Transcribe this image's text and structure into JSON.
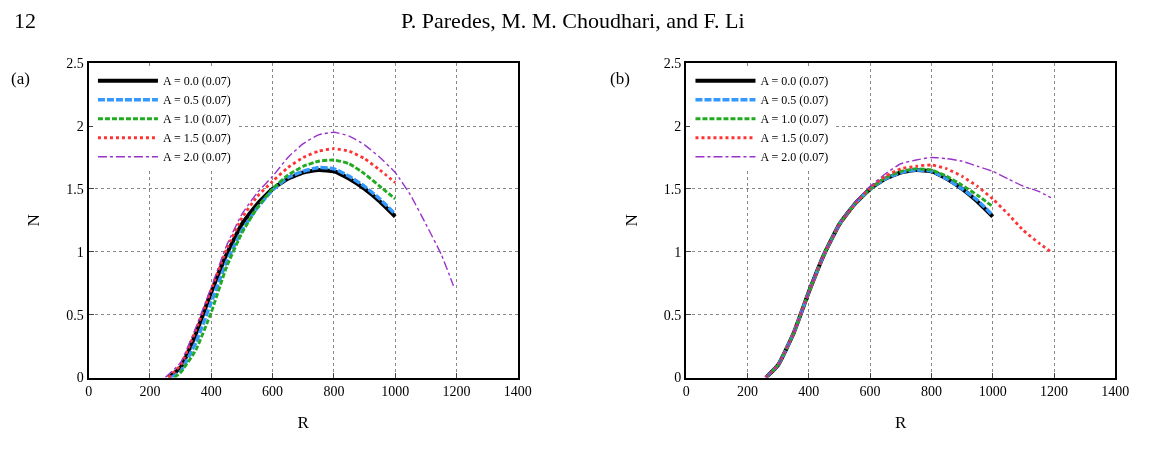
{
  "chart_data": [
    {
      "type": "line",
      "xlabel": "R",
      "ylabel": "N",
      "xlim": [
        0,
        1400
      ],
      "xticks": [
        0,
        200,
        400,
        600,
        800,
        1000,
        1200,
        1400
      ],
      "ylim": [
        0,
        2.5
      ],
      "yticks": [
        0,
        0.5,
        1,
        1.5,
        2,
        2.5
      ],
      "grid": true,
      "legend": "top left",
      "annotations": [
        "12",
        "P. Paredes, M. M. Choudhari, and F. Li",
        "(a)"
      ],
      "series": [
        {
          "name": "A = 0.0 (0.07)",
          "color": "#000000",
          "line_style": "solid",
          "x": [
            260,
            300,
            350,
            400,
            450,
            500,
            550,
            600,
            650,
            700,
            750,
            800,
            850,
            900,
            950,
            1000
          ],
          "values": [
            0,
            0.08,
            0.35,
            0.68,
            0.98,
            1.22,
            1.38,
            1.5,
            1.58,
            1.63,
            1.65,
            1.64,
            1.58,
            1.5,
            1.4,
            1.28
          ]
        },
        {
          "name": "A = 0.5 (0.07)",
          "color": "#3399ff",
          "line_style": "longdash",
          "x": [
            270,
            300,
            350,
            400,
            450,
            500,
            550,
            600,
            650,
            700,
            750,
            800,
            850,
            900,
            950,
            1000
          ],
          "values": [
            0,
            0.05,
            0.28,
            0.6,
            0.92,
            1.17,
            1.35,
            1.49,
            1.59,
            1.64,
            1.67,
            1.66,
            1.6,
            1.52,
            1.42,
            1.3
          ]
        },
        {
          "name": "A = 1.0 (0.07)",
          "color": "#22aa22",
          "line_style": "dashed",
          "x": [
            280,
            300,
            350,
            400,
            450,
            500,
            550,
            600,
            650,
            700,
            750,
            800,
            850,
            900,
            950,
            1000
          ],
          "values": [
            0,
            0.04,
            0.22,
            0.52,
            0.88,
            1.15,
            1.35,
            1.5,
            1.61,
            1.68,
            1.72,
            1.73,
            1.7,
            1.62,
            1.52,
            1.42
          ]
        },
        {
          "name": "A = 1.5 (0.07)",
          "color": "#ff3333",
          "line_style": "dotted",
          "x": [
            260,
            300,
            350,
            400,
            450,
            500,
            550,
            600,
            650,
            700,
            750,
            800,
            850,
            900,
            950,
            1000
          ],
          "values": [
            0,
            0.1,
            0.38,
            0.7,
            1.02,
            1.27,
            1.44,
            1.56,
            1.67,
            1.75,
            1.8,
            1.82,
            1.8,
            1.74,
            1.65,
            1.55
          ]
        },
        {
          "name": "A = 2.0 (0.07)",
          "color": "#9933cc",
          "line_style": "dashdot",
          "x": [
            250,
            300,
            350,
            400,
            450,
            500,
            550,
            600,
            650,
            700,
            750,
            800,
            850,
            900,
            950,
            1000,
            1050,
            1100,
            1150,
            1190
          ],
          "values": [
            0,
            0.12,
            0.4,
            0.72,
            1.05,
            1.3,
            1.47,
            1.6,
            1.75,
            1.86,
            1.93,
            1.95,
            1.92,
            1.85,
            1.75,
            1.63,
            1.45,
            1.22,
            0.98,
            0.73
          ]
        }
      ]
    },
    {
      "type": "line",
      "xlabel": "R",
      "ylabel": "N",
      "xlim": [
        0,
        1400
      ],
      "xticks": [
        0,
        200,
        400,
        600,
        800,
        1000,
        1200,
        1400
      ],
      "ylim": [
        0,
        2.5
      ],
      "yticks": [
        0,
        0.5,
        1,
        1.5,
        2,
        2.5
      ],
      "grid": true,
      "legend": "top left",
      "annotations": [
        "(b)"
      ],
      "series": [
        {
          "name": "A = 0.0 (0.07)",
          "color": "#000000",
          "line_style": "solid",
          "x": [
            260,
            300,
            350,
            400,
            450,
            500,
            550,
            600,
            650,
            700,
            750,
            800,
            850,
            900,
            950,
            1000
          ],
          "values": [
            0,
            0.1,
            0.35,
            0.68,
            0.98,
            1.22,
            1.38,
            1.5,
            1.58,
            1.63,
            1.65,
            1.64,
            1.58,
            1.5,
            1.4,
            1.28
          ]
        },
        {
          "name": "A = 0.5 (0.07)",
          "color": "#3399ff",
          "line_style": "longdash",
          "x": [
            260,
            300,
            350,
            400,
            450,
            500,
            550,
            600,
            650,
            700,
            750,
            800,
            850,
            900,
            950,
            1000
          ],
          "values": [
            0,
            0.1,
            0.35,
            0.68,
            0.98,
            1.22,
            1.38,
            1.5,
            1.58,
            1.63,
            1.65,
            1.64,
            1.58,
            1.5,
            1.41,
            1.29
          ]
        },
        {
          "name": "A = 1.0 (0.07)",
          "color": "#22aa22",
          "line_style": "dashed",
          "x": [
            260,
            300,
            350,
            400,
            450,
            500,
            550,
            600,
            650,
            700,
            750,
            800,
            850,
            900,
            950,
            1000
          ],
          "values": [
            0,
            0.1,
            0.35,
            0.68,
            0.98,
            1.22,
            1.38,
            1.5,
            1.59,
            1.64,
            1.66,
            1.65,
            1.6,
            1.53,
            1.45,
            1.36
          ]
        },
        {
          "name": "A = 1.5 (0.07)",
          "color": "#ff3333",
          "line_style": "dotted",
          "x": [
            260,
            300,
            350,
            400,
            450,
            500,
            550,
            600,
            650,
            700,
            750,
            800,
            850,
            900,
            950,
            1000,
            1050,
            1100,
            1150,
            1190
          ],
          "values": [
            0,
            0.1,
            0.35,
            0.68,
            0.98,
            1.22,
            1.38,
            1.51,
            1.6,
            1.66,
            1.68,
            1.69,
            1.66,
            1.6,
            1.52,
            1.42,
            1.3,
            1.17,
            1.07,
            1.0
          ]
        },
        {
          "name": "A = 2.0 (0.07)",
          "color": "#9933cc",
          "line_style": "dashdot",
          "x": [
            260,
            300,
            350,
            400,
            450,
            500,
            550,
            600,
            650,
            700,
            750,
            800,
            850,
            900,
            950,
            1000,
            1050,
            1100,
            1150,
            1190
          ],
          "values": [
            0,
            0.1,
            0.35,
            0.68,
            0.98,
            1.22,
            1.39,
            1.52,
            1.62,
            1.7,
            1.73,
            1.75,
            1.74,
            1.72,
            1.68,
            1.64,
            1.58,
            1.52,
            1.48,
            1.43
          ]
        }
      ]
    }
  ]
}
